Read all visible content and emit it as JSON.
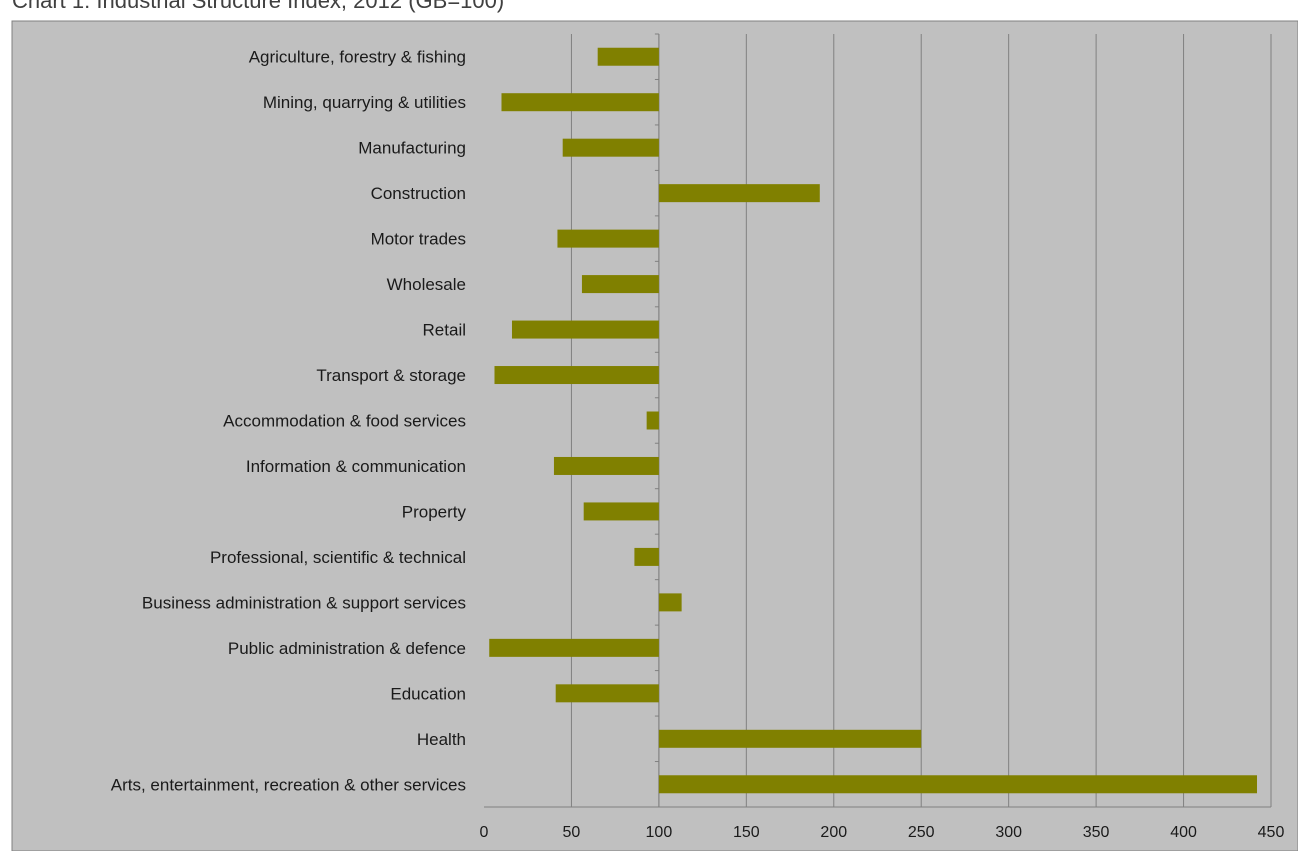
{
  "chart_data": {
    "type": "bar",
    "orientation": "horizontal",
    "title": "Chart 1: Industrial Structure Index, 2012 (GB=100)",
    "xlabel": "",
    "ylabel": "",
    "baseline": 100,
    "xlim": [
      0,
      450
    ],
    "xticks": [
      0,
      50,
      100,
      150,
      200,
      250,
      300,
      350,
      400,
      450
    ],
    "grid": "vertical",
    "legend": "none",
    "categories": [
      "Agriculture, forestry & fishing",
      "Mining, quarrying & utilities",
      "Manufacturing",
      "Construction",
      "Motor trades",
      "Wholesale",
      "Retail",
      "Transport & storage",
      "Accommodation & food services",
      "Information & communication",
      "Property",
      "Professional, scientific & technical",
      "Business administration & support services",
      "Public administration & defence",
      "Education",
      "Health",
      "Arts, entertainment, recreation & other services"
    ],
    "values": [
      65,
      10,
      45,
      192,
      42,
      56,
      16,
      6,
      93,
      40,
      57,
      86,
      113,
      3,
      41,
      250,
      442
    ]
  },
  "colors": {
    "bar": "#808000",
    "plot_background": "#c0c0c0",
    "gridline": "#808080",
    "axis": "#808080"
  }
}
